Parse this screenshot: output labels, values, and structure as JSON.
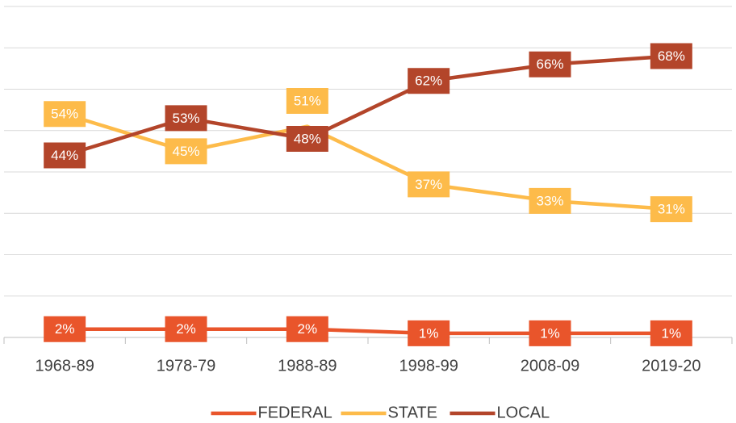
{
  "chart_data": {
    "type": "line",
    "categories": [
      "1968-89",
      "1978-79",
      "1988-89",
      "1998-99",
      "2008-09",
      "2019-20"
    ],
    "series": [
      {
        "name": "FEDERAL",
        "color": "#e9552b",
        "values": [
          2,
          2,
          2,
          1,
          1,
          1
        ],
        "value_labels": [
          "2%",
          "2%",
          "2%",
          "1%",
          "1%",
          "1%"
        ]
      },
      {
        "name": "STATE",
        "color": "#fdbb4a",
        "values": [
          54,
          45,
          51,
          37,
          33,
          31
        ],
        "value_labels": [
          "54%",
          "45%",
          "51%",
          "37%",
          "33%",
          "31%"
        ]
      },
      {
        "name": "LOCAL",
        "color": "#b3452a",
        "values": [
          44,
          53,
          48,
          62,
          66,
          68
        ],
        "value_labels": [
          "44%",
          "53%",
          "48%",
          "62%",
          "66%",
          "68%"
        ]
      }
    ],
    "ylim": [
      0,
      80
    ],
    "yticks": [
      0,
      10,
      20,
      30,
      40,
      50,
      60,
      70,
      80
    ],
    "ytick_labels": false,
    "grid": true,
    "legend": "bottom"
  }
}
